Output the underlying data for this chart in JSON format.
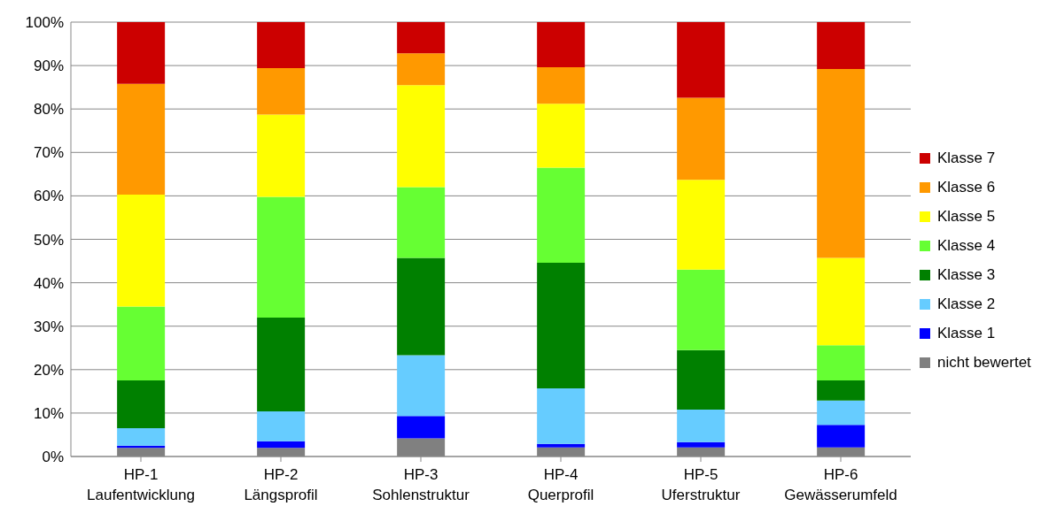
{
  "chart_data": {
    "type": "bar",
    "stacked": true,
    "categories": [
      "HP-1\nLaufentwicklung",
      "HP-2\nLängsprofil",
      "HP-3\nSohlenstruktur",
      "HP-4\nQuerprofil",
      "HP-5\nUferstruktur",
      "HP-6\nGewässerumfeld"
    ],
    "series": [
      {
        "name": "nicht bewertet",
        "color": "#808080",
        "values": [
          2.0,
          2.0,
          4.2,
          2.1,
          2.1,
          2.1
        ]
      },
      {
        "name": "Klasse 1",
        "color": "#0000ff",
        "values": [
          0.5,
          1.5,
          5.1,
          0.8,
          1.2,
          5.2
        ]
      },
      {
        "name": "Klasse 2",
        "color": "#66ccff",
        "values": [
          4.0,
          6.9,
          14.0,
          12.8,
          7.5,
          5.6
        ]
      },
      {
        "name": "Klasse 3",
        "color": "#008000",
        "values": [
          11.0,
          21.6,
          22.4,
          28.9,
          13.7,
          4.6
        ]
      },
      {
        "name": "Klasse 4",
        "color": "#66ff33",
        "values": [
          17.0,
          27.8,
          16.3,
          21.9,
          18.5,
          8.1
        ]
      },
      {
        "name": "Klasse 5",
        "color": "#ffff00",
        "values": [
          25.8,
          18.9,
          23.5,
          14.7,
          20.7,
          20.1
        ]
      },
      {
        "name": "Klasse 6",
        "color": "#ff9900",
        "values": [
          25.5,
          10.7,
          7.3,
          8.4,
          18.9,
          43.5
        ]
      },
      {
        "name": "Klasse 7",
        "color": "#cc0000",
        "values": [
          14.2,
          10.6,
          7.2,
          10.4,
          17.4,
          10.8
        ]
      }
    ],
    "ylim": [
      0,
      100
    ],
    "yticks": [
      {
        "value": 0,
        "label": "0%"
      },
      {
        "value": 10,
        "label": "10%"
      },
      {
        "value": 20,
        "label": "20%"
      },
      {
        "value": 30,
        "label": "30%"
      },
      {
        "value": 40,
        "label": "40%"
      },
      {
        "value": 50,
        "label": "50%"
      },
      {
        "value": 60,
        "label": "60%"
      },
      {
        "value": 70,
        "label": "70%"
      },
      {
        "value": 80,
        "label": "80%"
      },
      {
        "value": 90,
        "label": "90%"
      },
      {
        "value": 100,
        "label": "100%"
      }
    ],
    "grid": "y",
    "legend": "right"
  }
}
